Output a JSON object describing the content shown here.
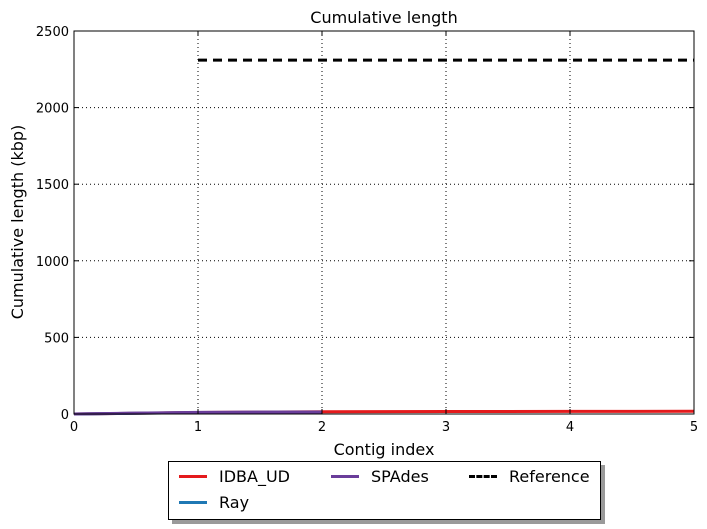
{
  "chart_data": {
    "type": "line",
    "title": "Cumulative length",
    "xlabel": "Contig index",
    "ylabel": "Cumulative length (kbp)",
    "xlim": [
      0,
      5
    ],
    "ylim": [
      0,
      2500
    ],
    "xticks": [
      "0",
      "1",
      "2",
      "3",
      "4",
      "5"
    ],
    "yticks": [
      "0",
      "500",
      "1000",
      "1500",
      "2000",
      "2500"
    ],
    "grid": true,
    "legend_position": "bottom-center",
    "series": [
      {
        "name": "IDBA_UD",
        "color": "#e41a1c",
        "dash": "solid",
        "x": [
          0,
          1,
          2,
          3,
          4,
          5
        ],
        "y": [
          0,
          10,
          15,
          16,
          17,
          18
        ]
      },
      {
        "name": "Ray",
        "color": "#1f78b4",
        "dash": "solid",
        "x": [
          0,
          1,
          2
        ],
        "y": [
          0,
          9,
          12
        ]
      },
      {
        "name": "SPAdes",
        "color": "#6a3d9a",
        "dash": "solid",
        "x": [
          0,
          1,
          2
        ],
        "y": [
          0,
          11,
          13
        ]
      },
      {
        "name": "Reference",
        "color": "#000000",
        "dash": "dashed",
        "x": [
          1,
          5
        ],
        "y": [
          2310,
          2310
        ]
      }
    ]
  }
}
